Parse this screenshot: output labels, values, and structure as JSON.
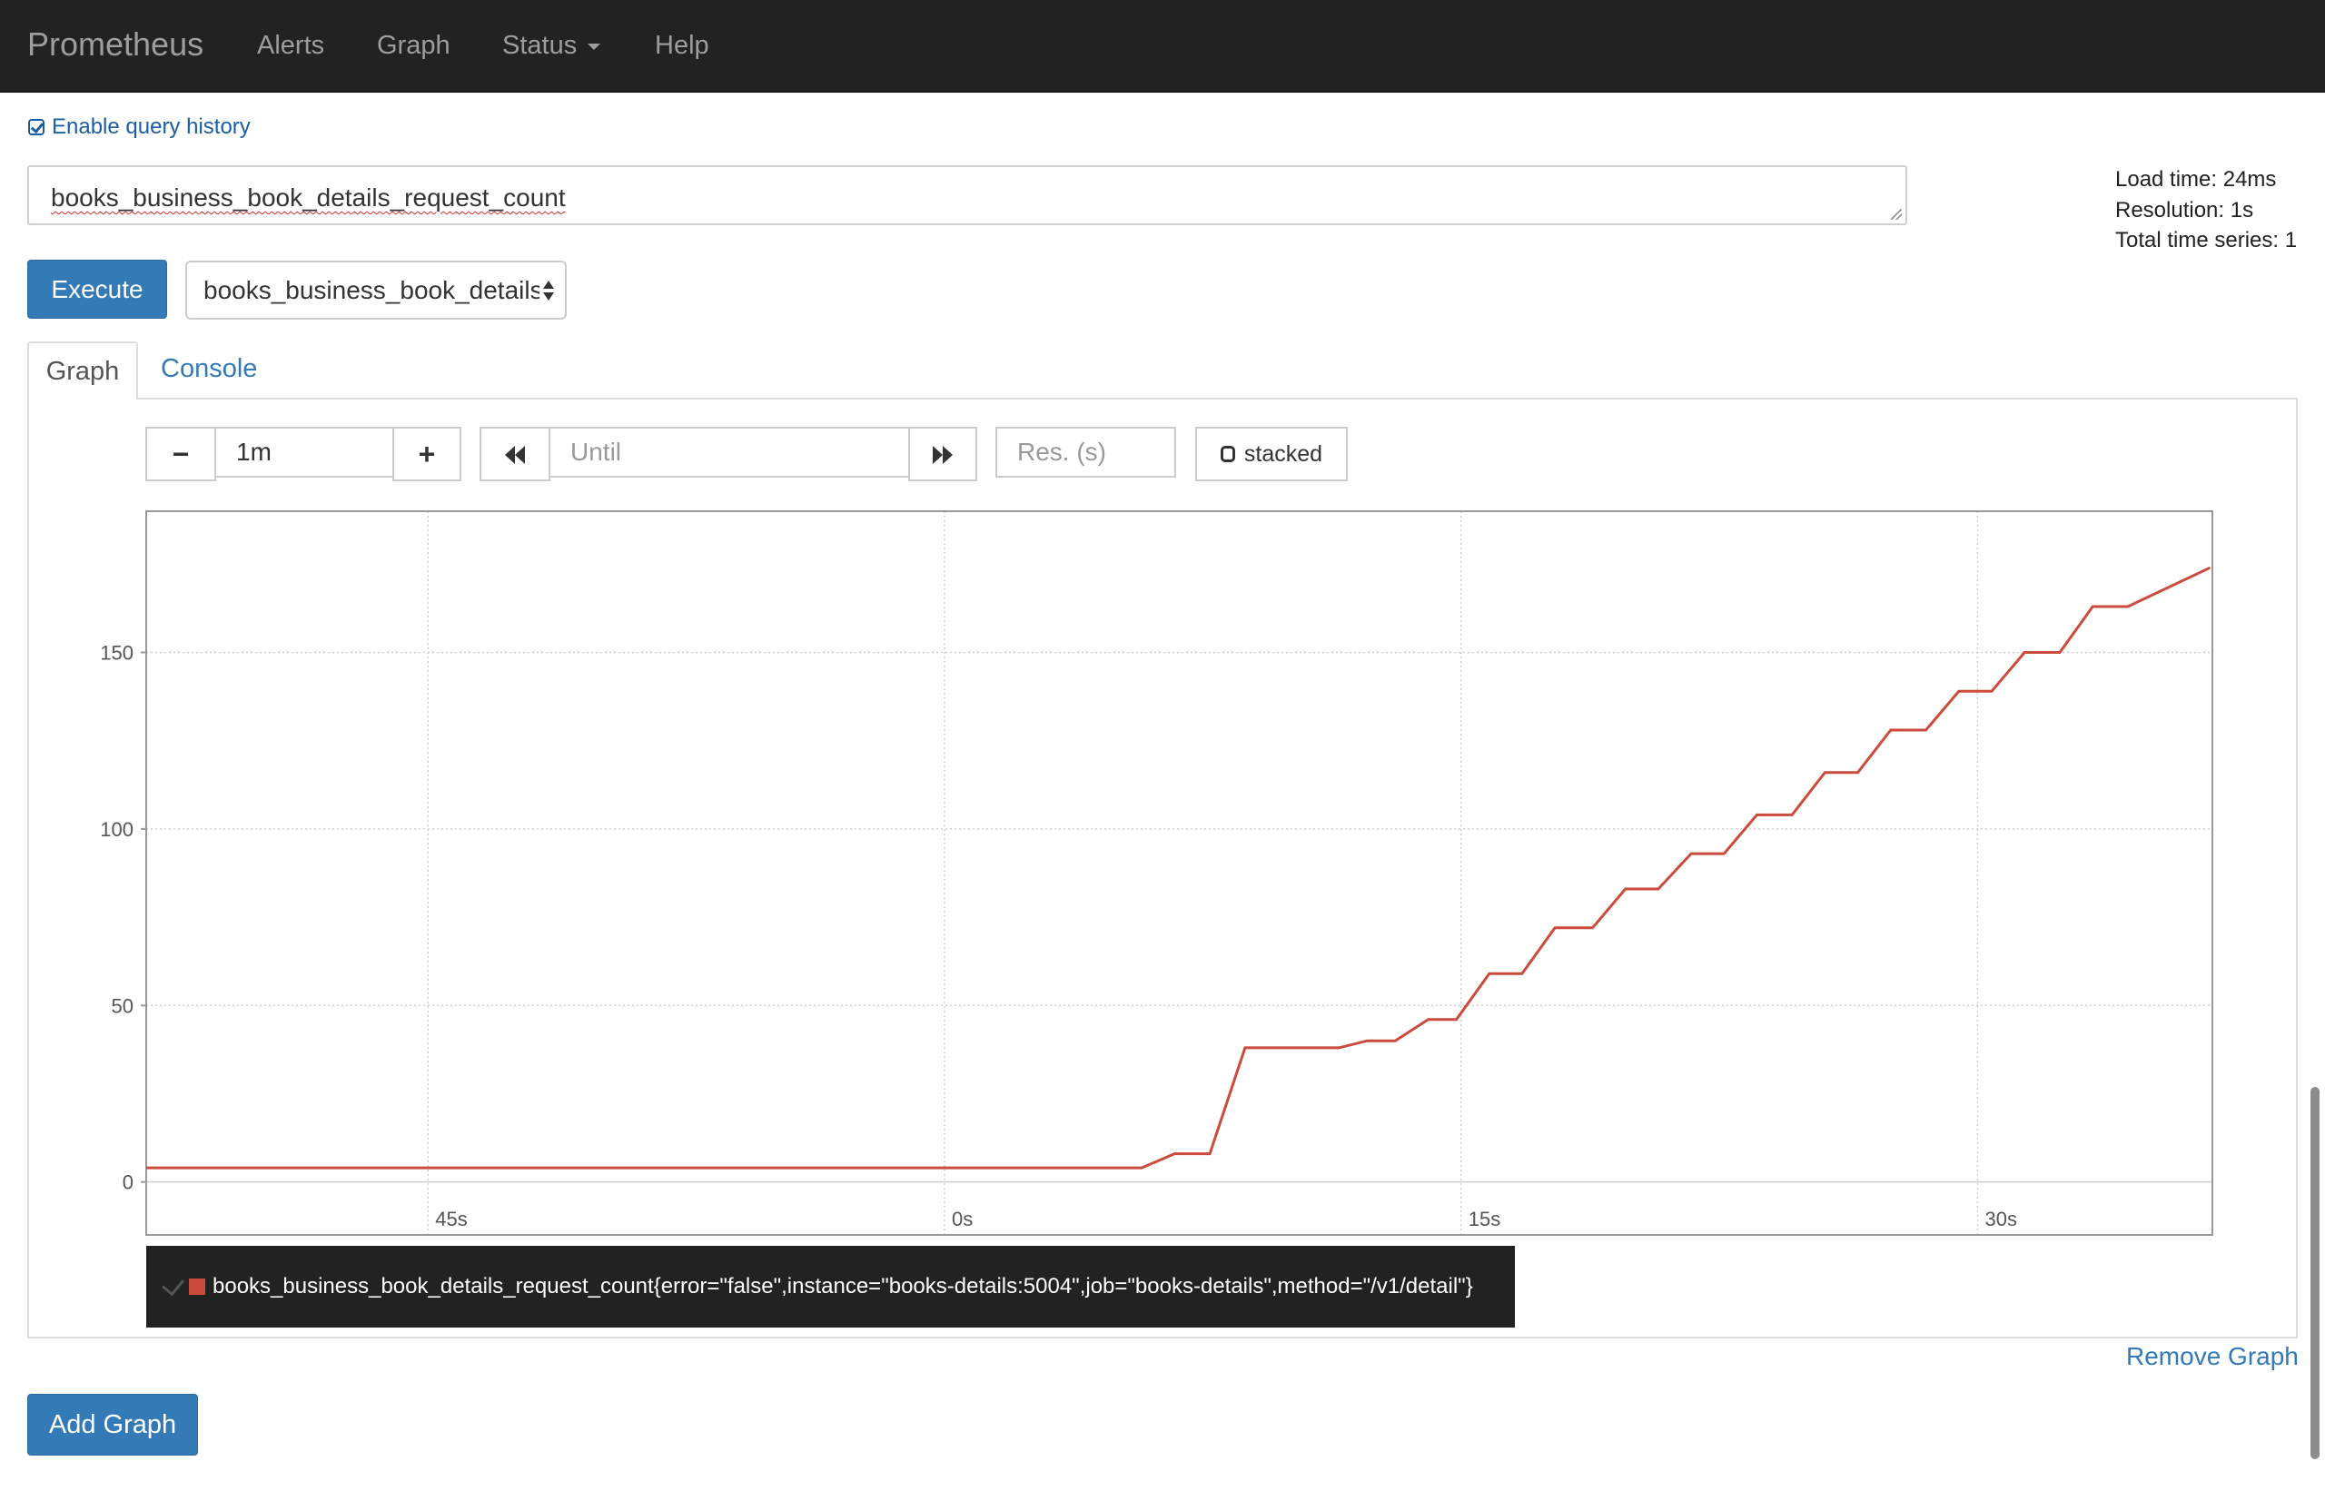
{
  "nav": {
    "brand": "Prometheus",
    "alerts": "Alerts",
    "graph": "Graph",
    "status": "Status",
    "help": "Help"
  },
  "query_history_label": "Enable query history",
  "expression": "books_business_book_details_request_count",
  "stats": {
    "load_time": "Load time: 24ms",
    "resolution": "Resolution: 1s",
    "total_series": "Total time series: 1"
  },
  "execute_label": "Execute",
  "metric_select_value": "books_business_book_details_request_count",
  "tabs": {
    "graph": "Graph",
    "console": "Console"
  },
  "controls": {
    "minus": "−",
    "range": "1m",
    "plus": "+",
    "until_placeholder": "Until",
    "res_placeholder": "Res. (s)",
    "stacked": "stacked"
  },
  "chart_data": {
    "type": "line",
    "x_range": [
      -52,
      36
    ],
    "y_range": [
      -15,
      190
    ],
    "x_ticks": [
      {
        "value": -40,
        "label": "45s"
      },
      {
        "value": -18,
        "label": "0s"
      },
      {
        "value": 4,
        "label": "15s"
      },
      {
        "value": 26,
        "label": "30s"
      }
    ],
    "y_ticks": [
      {
        "value": 0,
        "label": "0"
      },
      {
        "value": 50,
        "label": "50"
      },
      {
        "value": 100,
        "label": "100"
      },
      {
        "value": 150,
        "label": "150"
      }
    ],
    "series": [
      {
        "name": "books_business_book_details_request_count{error=\"false\",instance=\"books-details:5004\",job=\"books-details\",method=\"/v1/detail\"}",
        "color": "#cb4b3d",
        "points": [
          [
            -52,
            4
          ],
          [
            -9.6,
            4
          ],
          [
            -8.2,
            8
          ],
          [
            -6.7,
            8
          ],
          [
            -5.2,
            38
          ],
          [
            -1.2,
            38
          ],
          [
            0,
            40
          ],
          [
            1.2,
            40
          ],
          [
            2.6,
            46
          ],
          [
            3.8,
            46
          ],
          [
            5.2,
            59
          ],
          [
            6.6,
            59
          ],
          [
            8,
            72
          ],
          [
            9.6,
            72
          ],
          [
            11,
            83
          ],
          [
            12.4,
            83
          ],
          [
            13.8,
            93
          ],
          [
            15.2,
            93
          ],
          [
            16.6,
            104
          ],
          [
            18.1,
            104
          ],
          [
            19.5,
            116
          ],
          [
            20.9,
            116
          ],
          [
            22.3,
            128
          ],
          [
            23.8,
            128
          ],
          [
            25.2,
            139
          ],
          [
            26.6,
            139
          ],
          [
            28,
            150
          ],
          [
            29.5,
            150
          ],
          [
            30.9,
            163
          ],
          [
            32.4,
            163
          ],
          [
            35.9,
            174
          ]
        ]
      }
    ]
  },
  "legend_label": "books_business_book_details_request_count{error=\"false\",instance=\"books-details:5004\",job=\"books-details\",method=\"/v1/detail\"}",
  "remove_graph_label": "Remove Graph",
  "add_graph_label": "Add Graph"
}
